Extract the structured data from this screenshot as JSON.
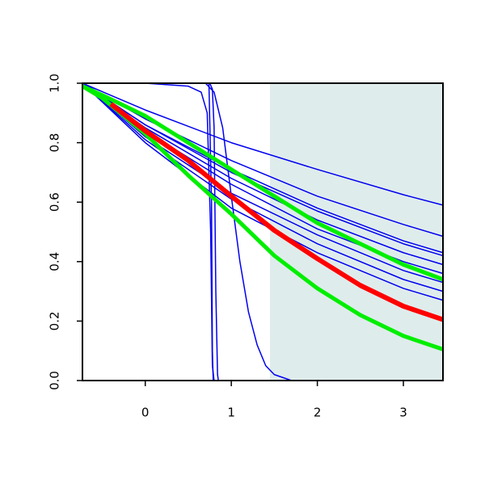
{
  "chart_data": {
    "type": "line",
    "xlim": [
      -0.73,
      3.46
    ],
    "ylim": [
      0,
      1
    ],
    "xticks": [
      0,
      1,
      2,
      3
    ],
    "yticks": [
      {
        "value": 0,
        "label": "0.0"
      },
      0.2,
      0.4,
      0.6,
      0.8,
      {
        "value": 1,
        "label": "1.0"
      }
    ],
    "shaded_region": [
      1.45,
      3.46
    ],
    "shade_color": "#dfecec",
    "x": [
      -0.73,
      0,
      1,
      2,
      3,
      3.46
    ],
    "series": [
      {
        "color": "#0000ee",
        "line_width": 1.5,
        "values": [
          1,
          0.91,
          0.8,
          0.71,
          0.625,
          0.59
        ]
      },
      {
        "color": "#0000ee",
        "line_width": 1.5,
        "values": [
          1,
          0.88,
          0.74,
          0.62,
          0.525,
          0.485
        ]
      },
      {
        "color": "#0000ee",
        "line_width": 1.5,
        "values": [
          1,
          0.86,
          0.71,
          0.58,
          0.47,
          0.43
        ]
      },
      {
        "color": "#0000ee",
        "line_width": 1.5,
        "values": [
          1,
          0.86,
          0.7,
          0.57,
          0.46,
          0.42
        ]
      },
      {
        "color": "#0000ee",
        "line_width": 1.5,
        "values": [
          1,
          0.85,
          0.68,
          0.54,
          0.43,
          0.39
        ]
      },
      {
        "color": "#0000ee",
        "line_width": 1.5,
        "values": [
          1,
          0.84,
          0.66,
          0.51,
          0.4,
          0.36
        ]
      },
      {
        "color": "#0000ee",
        "line_width": 1.5,
        "values": [
          1,
          0.82,
          0.63,
          0.49,
          0.37,
          0.33
        ]
      },
      {
        "color": "#0000ee",
        "line_width": 1.5,
        "values": [
          1,
          0.81,
          0.61,
          0.46,
          0.34,
          0.3
        ]
      },
      {
        "color": "#0000ee",
        "line_width": 1.5,
        "values": [
          1,
          0.8,
          0.58,
          0.43,
          0.31,
          0.27
        ]
      },
      {
        "color": "#0000ee",
        "line_width": 1.5,
        "x": [
          -0.73,
          0,
          0.5,
          0.65,
          0.72,
          0.76,
          0.78,
          0.8,
          3.46
        ],
        "values": [
          1,
          1,
          0.99,
          0.97,
          0.9,
          0.5,
          0.05,
          0,
          0
        ]
      },
      {
        "color": "#0000ee",
        "line_width": 1.5,
        "x": [
          -0.73,
          0.7,
          0.74,
          0.77,
          0.78,
          0.79,
          3.46
        ],
        "values": [
          1,
          1,
          1,
          0.6,
          0.1,
          0,
          0
        ]
      },
      {
        "color": "#0000ee",
        "line_width": 1.5,
        "x": [
          -0.73,
          0.75,
          0.78,
          0.8,
          0.82,
          0.84,
          0.85,
          3.46
        ],
        "values": [
          1,
          1,
          0.98,
          0.85,
          0.3,
          0.02,
          0,
          0
        ]
      },
      {
        "color": "#0000ee",
        "line_width": 1.5,
        "x": [
          -0.73,
          0.7,
          0.8,
          0.9,
          1,
          1.1,
          1.2,
          1.3,
          1.4,
          1.5,
          1.7,
          3.46
        ],
        "values": [
          1,
          1,
          0.97,
          0.85,
          0.62,
          0.4,
          0.23,
          0.12,
          0.05,
          0.02,
          0,
          0
        ]
      },
      {
        "color": "#00ee00",
        "line_width": 5,
        "x": [
          -0.73,
          -0.5,
          0,
          0.5,
          1,
          1.5,
          2,
          2.5,
          3,
          3.46
        ],
        "values": [
          0.99,
          0.96,
          0.89,
          0.8,
          0.71,
          0.62,
          0.53,
          0.46,
          0.39,
          0.34
        ]
      },
      {
        "color": "#00ee00",
        "line_width": 5,
        "x": [
          -0.73,
          -0.5,
          0,
          0.5,
          1,
          1.5,
          2,
          2.5,
          3,
          3.46
        ],
        "values": [
          0.99,
          0.95,
          0.83,
          0.69,
          0.56,
          0.42,
          0.31,
          0.22,
          0.15,
          0.105
        ]
      },
      {
        "color": "#ff0000",
        "line_width": 6,
        "x": [
          -0.4,
          0,
          0.5,
          1,
          1.5,
          2,
          2.5,
          3,
          3.46
        ],
        "values": [
          0.93,
          0.84,
          0.74,
          0.62,
          0.505,
          0.41,
          0.32,
          0.25,
          0.205
        ]
      }
    ]
  }
}
